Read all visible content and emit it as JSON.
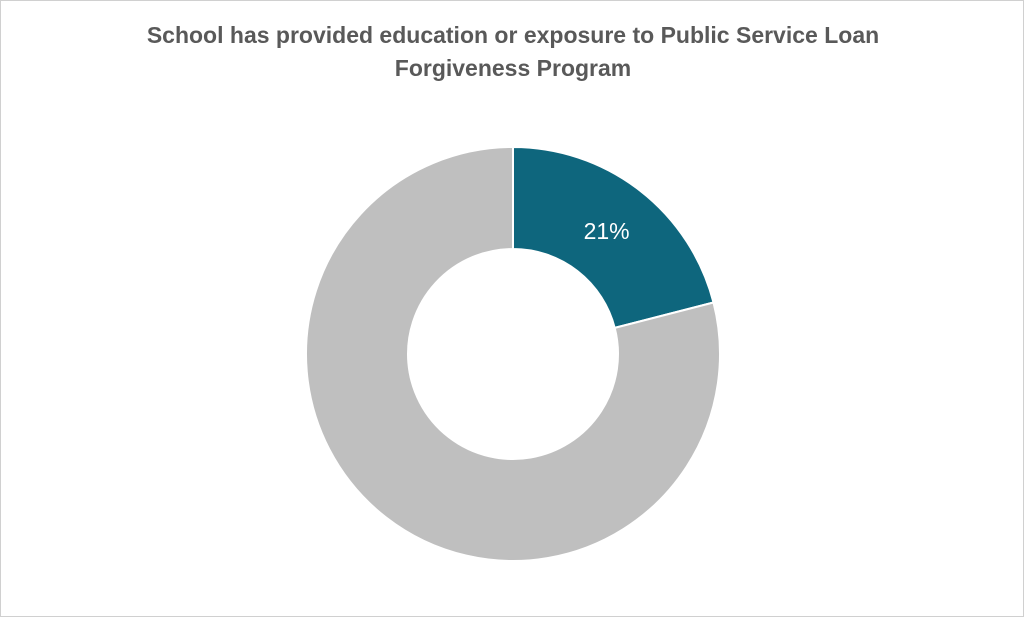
{
  "chart_data": {
    "type": "donut",
    "title": "School has provided education or exposure to Public Service Loan Forgiveness Program",
    "values": [
      21,
      79
    ],
    "value_labels": [
      "21%",
      null
    ],
    "colors": [
      "#0e667d",
      "#bfbfbf"
    ]
  }
}
